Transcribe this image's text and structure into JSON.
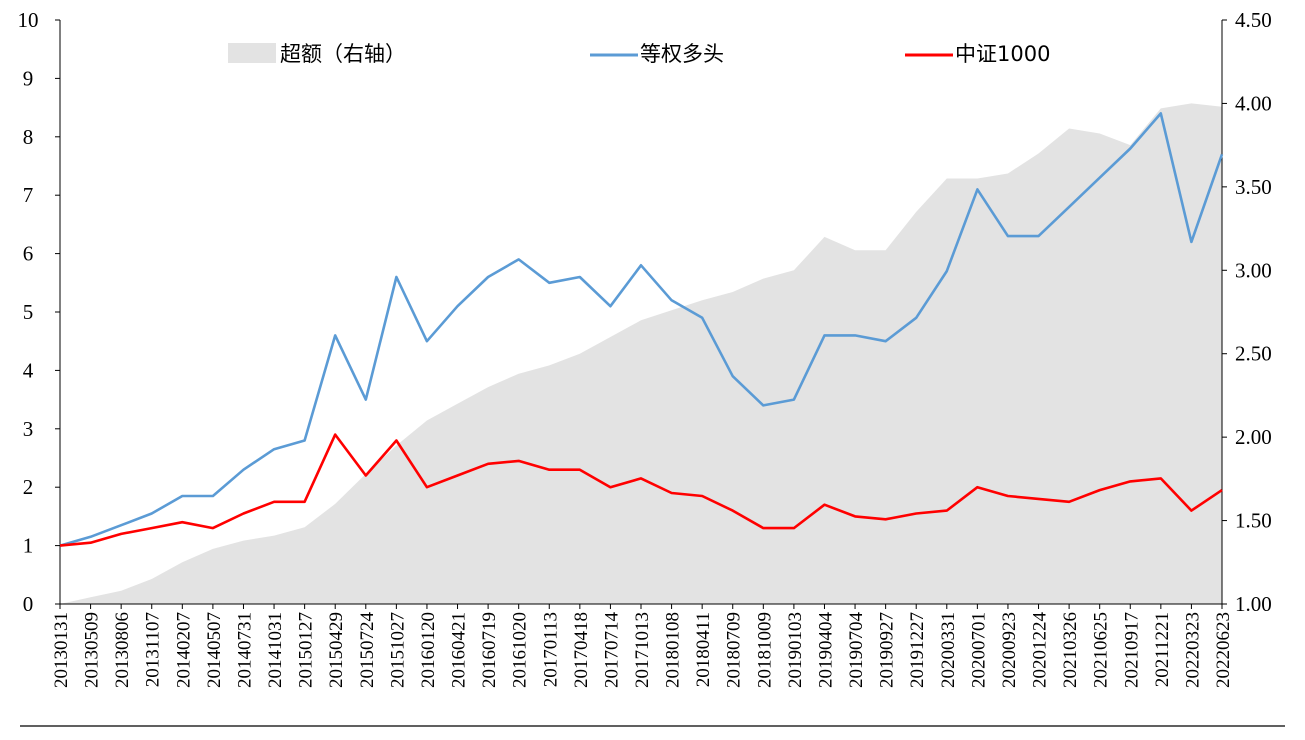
{
  "chart_data": {
    "type": "line",
    "title": "",
    "xlabel": "",
    "ylabel": "",
    "ylabel_right": "",
    "ylim": [
      0,
      10
    ],
    "ylim_right": [
      1.0,
      4.5
    ],
    "yticks": [
      "0",
      "1",
      "2",
      "3",
      "4",
      "5",
      "6",
      "7",
      "8",
      "9",
      "10"
    ],
    "yticks_right": [
      "1.00",
      "1.50",
      "2.00",
      "2.50",
      "3.00",
      "3.50",
      "4.00",
      "4.50"
    ],
    "grid": false,
    "legend_position": "top",
    "x_tick_labels": [
      "20130131",
      "20130509",
      "20130806",
      "20131107",
      "20140207",
      "20140507",
      "20140731",
      "20141031",
      "20150127",
      "20150429",
      "20150724",
      "20151027",
      "20160120",
      "20160421",
      "20160719",
      "20161020",
      "20170113",
      "20170418",
      "20170714",
      "20171013",
      "20180108",
      "20180411",
      "20180709",
      "20181009",
      "20190103",
      "20190404",
      "20190704",
      "20190927",
      "20191227",
      "20200331",
      "20200701",
      "20200923",
      "20201224",
      "20210326",
      "20210625",
      "20210917",
      "20211221",
      "20220323",
      "20220623"
    ],
    "series": [
      {
        "name": "超额（右轴）",
        "kind": "area",
        "axis": "right",
        "color": "#e3e3e3",
        "values": [
          1.0,
          1.04,
          1.08,
          1.15,
          1.25,
          1.33,
          1.38,
          1.41,
          1.46,
          1.6,
          1.78,
          1.95,
          2.1,
          2.2,
          2.3,
          2.38,
          2.43,
          2.5,
          2.6,
          2.7,
          2.76,
          2.82,
          2.87,
          2.95,
          3.0,
          3.2,
          3.12,
          3.12,
          3.35,
          3.55,
          3.55,
          3.58,
          3.7,
          3.85,
          3.82,
          3.75,
          3.97,
          4.0,
          3.98
        ]
      },
      {
        "name": "等权多头",
        "kind": "line",
        "axis": "left",
        "color": "#5b9bd5",
        "values": [
          1.0,
          1.15,
          1.35,
          1.55,
          1.85,
          1.85,
          2.3,
          2.65,
          2.8,
          4.6,
          3.5,
          5.6,
          4.5,
          5.1,
          5.6,
          5.9,
          5.5,
          5.6,
          5.1,
          5.8,
          5.2,
          4.9,
          3.9,
          3.4,
          3.5,
          4.6,
          4.6,
          4.5,
          4.9,
          5.7,
          7.1,
          6.3,
          6.3,
          6.8,
          7.3,
          7.8,
          8.4,
          6.2,
          7.7
        ]
      },
      {
        "name": "中证1000",
        "kind": "line",
        "axis": "left",
        "color": "#ff0000",
        "values": [
          1.0,
          1.05,
          1.2,
          1.3,
          1.4,
          1.3,
          1.55,
          1.75,
          1.75,
          2.9,
          2.2,
          2.8,
          2.0,
          2.2,
          2.4,
          2.45,
          2.3,
          2.3,
          2.0,
          2.15,
          1.9,
          1.85,
          1.6,
          1.3,
          1.3,
          1.7,
          1.5,
          1.45,
          1.55,
          1.6,
          2.0,
          1.85,
          1.8,
          1.75,
          1.95,
          2.1,
          2.15,
          1.6,
          1.95
        ]
      }
    ]
  }
}
